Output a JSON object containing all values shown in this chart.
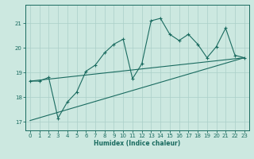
{
  "xlabel": "Humidex (Indice chaleur)",
  "bg_color": "#cce8e0",
  "grid_color": "#aacfc8",
  "line_color": "#1a6b60",
  "xlim": [
    -0.5,
    23.5
  ],
  "ylim": [
    16.65,
    21.75
  ],
  "yticks": [
    17,
    18,
    19,
    20,
    21
  ],
  "xticks": [
    0,
    1,
    2,
    3,
    4,
    5,
    6,
    7,
    8,
    9,
    10,
    11,
    12,
    13,
    14,
    15,
    16,
    17,
    18,
    19,
    20,
    21,
    22,
    23
  ],
  "line1_x": [
    0,
    1,
    2,
    3,
    4,
    5,
    6,
    7,
    8,
    9,
    10,
    11,
    12,
    13,
    14,
    15,
    16,
    17,
    18,
    19,
    20,
    21,
    22,
    23
  ],
  "line1_y": [
    18.65,
    18.65,
    18.8,
    17.15,
    17.8,
    18.2,
    19.05,
    19.3,
    19.8,
    20.15,
    20.35,
    18.75,
    19.35,
    21.1,
    21.2,
    20.55,
    20.3,
    20.55,
    20.15,
    19.6,
    20.05,
    20.8,
    19.7,
    19.6
  ],
  "line2_x": [
    0,
    23
  ],
  "line2_y": [
    17.05,
    19.6
  ],
  "line3_x": [
    0,
    23
  ],
  "line3_y": [
    18.65,
    19.6
  ]
}
